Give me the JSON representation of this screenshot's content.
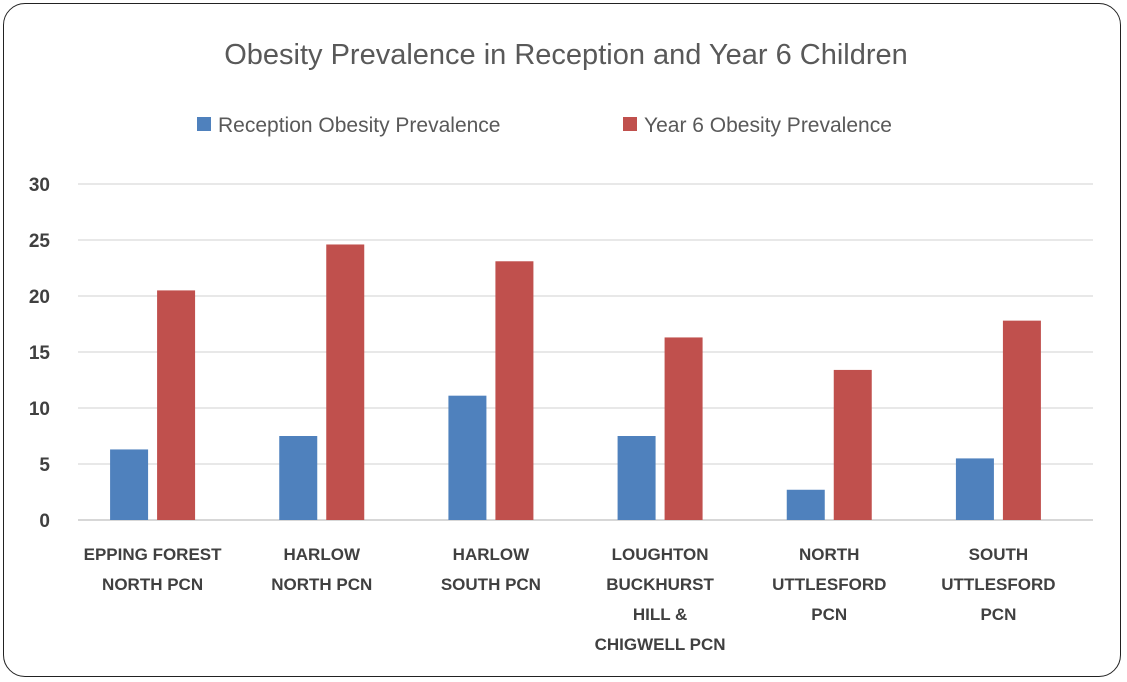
{
  "chart_data": {
    "type": "bar",
    "title": "Obesity Prevalence in Reception and Year 6 Children",
    "categories": [
      [
        "EPPING FOREST",
        "NORTH PCN"
      ],
      [
        "HARLOW",
        "NORTH PCN"
      ],
      [
        "HARLOW",
        "SOUTH PCN"
      ],
      [
        "LOUGHTON",
        "BUCKHURST",
        "HILL &",
        "CHIGWELL PCN"
      ],
      [
        "NORTH",
        "UTTLESFORD",
        "PCN"
      ],
      [
        "SOUTH",
        "UTTLESFORD",
        "PCN"
      ]
    ],
    "series": [
      {
        "name": "Reception Obesity Prevalence",
        "color": "#4f81bd",
        "values": [
          6.3,
          7.5,
          11.1,
          7.5,
          2.7,
          5.5
        ]
      },
      {
        "name": "Year 6 Obesity Prevalence",
        "color": "#c0504d",
        "values": [
          20.5,
          24.6,
          23.1,
          16.3,
          13.4,
          17.8
        ]
      }
    ],
    "ylim": [
      0,
      30
    ],
    "yticks": [
      "0",
      "5",
      "10",
      "15",
      "20",
      "25",
      "30"
    ],
    "grid": true,
    "legend": "top"
  }
}
